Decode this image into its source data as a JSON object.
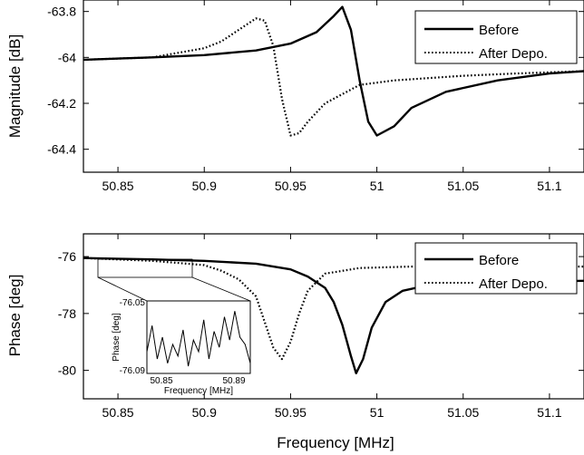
{
  "chart_data": [
    {
      "type": "line",
      "ylabel": "Magnitude [dB]",
      "xlabel": "",
      "xlim": [
        50.83,
        51.12
      ],
      "ylim": [
        -64.5,
        -63.75
      ],
      "x_ticks": [
        50.85,
        50.9,
        50.95,
        51.0,
        51.05,
        51.1
      ],
      "x_tick_labels": [
        "50.85",
        "50.9",
        "50.95",
        "51",
        "51.05",
        "51.1"
      ],
      "y_ticks": [
        -63.8,
        -64.0,
        -64.2,
        -64.4
      ],
      "y_tick_labels": [
        "-63.8",
        "-64",
        "-64.2",
        "-64.4"
      ],
      "legend": {
        "position": "top-right",
        "entries": [
          "Before",
          "After Depo."
        ]
      },
      "series": [
        {
          "name": "Before",
          "style": "solid",
          "x": [
            50.83,
            50.87,
            50.9,
            50.93,
            50.95,
            50.965,
            50.975,
            50.98,
            50.985,
            50.99,
            50.995,
            51.0,
            51.01,
            51.02,
            51.04,
            51.07,
            51.1,
            51.12
          ],
          "y": [
            -64.01,
            -64.0,
            -63.99,
            -63.97,
            -63.94,
            -63.89,
            -63.82,
            -63.78,
            -63.88,
            -64.1,
            -64.28,
            -64.34,
            -64.3,
            -64.22,
            -64.15,
            -64.1,
            -64.07,
            -64.06
          ]
        },
        {
          "name": "After Depo.",
          "style": "dotted",
          "x": [
            50.83,
            50.87,
            50.9,
            50.91,
            50.92,
            50.93,
            50.935,
            50.94,
            50.945,
            50.95,
            50.955,
            50.96,
            50.97,
            50.99,
            51.01,
            51.05,
            51.08,
            51.12
          ],
          "y": [
            -64.01,
            -64.0,
            -63.96,
            -63.93,
            -63.88,
            -63.83,
            -63.84,
            -63.95,
            -64.18,
            -64.34,
            -64.33,
            -64.28,
            -64.2,
            -64.12,
            -64.1,
            -64.08,
            -64.07,
            -64.06
          ]
        }
      ]
    },
    {
      "type": "line",
      "ylabel": "Phase [deg]",
      "xlabel": "Frequency [MHz]",
      "xlim": [
        50.83,
        51.12
      ],
      "ylim": [
        -81.0,
        -75.2
      ],
      "x_ticks": [
        50.85,
        50.9,
        50.95,
        51.0,
        51.05,
        51.1
      ],
      "x_tick_labels": [
        "50.85",
        "50.9",
        "50.95",
        "51",
        "51.05",
        "51.1"
      ],
      "y_ticks": [
        -76,
        -78,
        -80
      ],
      "y_tick_labels": [
        "-76",
        "-78",
        "-80"
      ],
      "legend": {
        "position": "top-right",
        "entries": [
          "Before",
          "After Depo."
        ]
      },
      "series": [
        {
          "name": "Before",
          "style": "solid",
          "x": [
            50.83,
            50.87,
            50.9,
            50.93,
            50.95,
            50.96,
            50.97,
            50.975,
            50.98,
            50.985,
            50.988,
            50.992,
            50.997,
            51.005,
            51.015,
            51.03,
            51.06,
            51.12
          ],
          "y": [
            -76.05,
            -76.1,
            -76.15,
            -76.25,
            -76.45,
            -76.7,
            -77.1,
            -77.6,
            -78.4,
            -79.5,
            -80.1,
            -79.6,
            -78.5,
            -77.6,
            -77.2,
            -77.0,
            -76.9,
            -76.85
          ]
        },
        {
          "name": "After Depo.",
          "style": "dotted",
          "x": [
            50.83,
            50.87,
            50.9,
            50.91,
            50.92,
            50.93,
            50.935,
            50.94,
            50.945,
            50.95,
            50.955,
            50.96,
            50.97,
            50.99,
            51.02,
            51.06,
            51.12
          ],
          "y": [
            -76.05,
            -76.15,
            -76.3,
            -76.5,
            -76.8,
            -77.4,
            -78.3,
            -79.2,
            -79.6,
            -79.0,
            -78.0,
            -77.2,
            -76.6,
            -76.4,
            -76.35,
            -76.35,
            -76.35
          ]
        }
      ],
      "inset": {
        "ylabel": "Phase [deg]",
        "xlabel": "Frequency [MHz]",
        "x_tick_labels": [
          "50.85",
          "50.89"
        ],
        "y_tick_labels": [
          "-76.05",
          "-76.09"
        ],
        "xlim": [
          50.835,
          50.895
        ],
        "ylim": [
          -76.095,
          -76.045
        ],
        "x": [
          50.835,
          50.838,
          50.841,
          50.844,
          50.847,
          50.85,
          50.853,
          50.856,
          50.859,
          50.862,
          50.865,
          50.868,
          50.871,
          50.874,
          50.877,
          50.88,
          50.883,
          50.886,
          50.889,
          50.892,
          50.895
        ],
        "y": [
          -76.08,
          -76.062,
          -76.085,
          -76.07,
          -76.088,
          -76.075,
          -76.083,
          -76.065,
          -76.09,
          -76.072,
          -76.08,
          -76.058,
          -76.085,
          -76.066,
          -76.077,
          -76.056,
          -76.072,
          -76.052,
          -76.07,
          -76.075,
          -76.088
        ]
      }
    }
  ]
}
